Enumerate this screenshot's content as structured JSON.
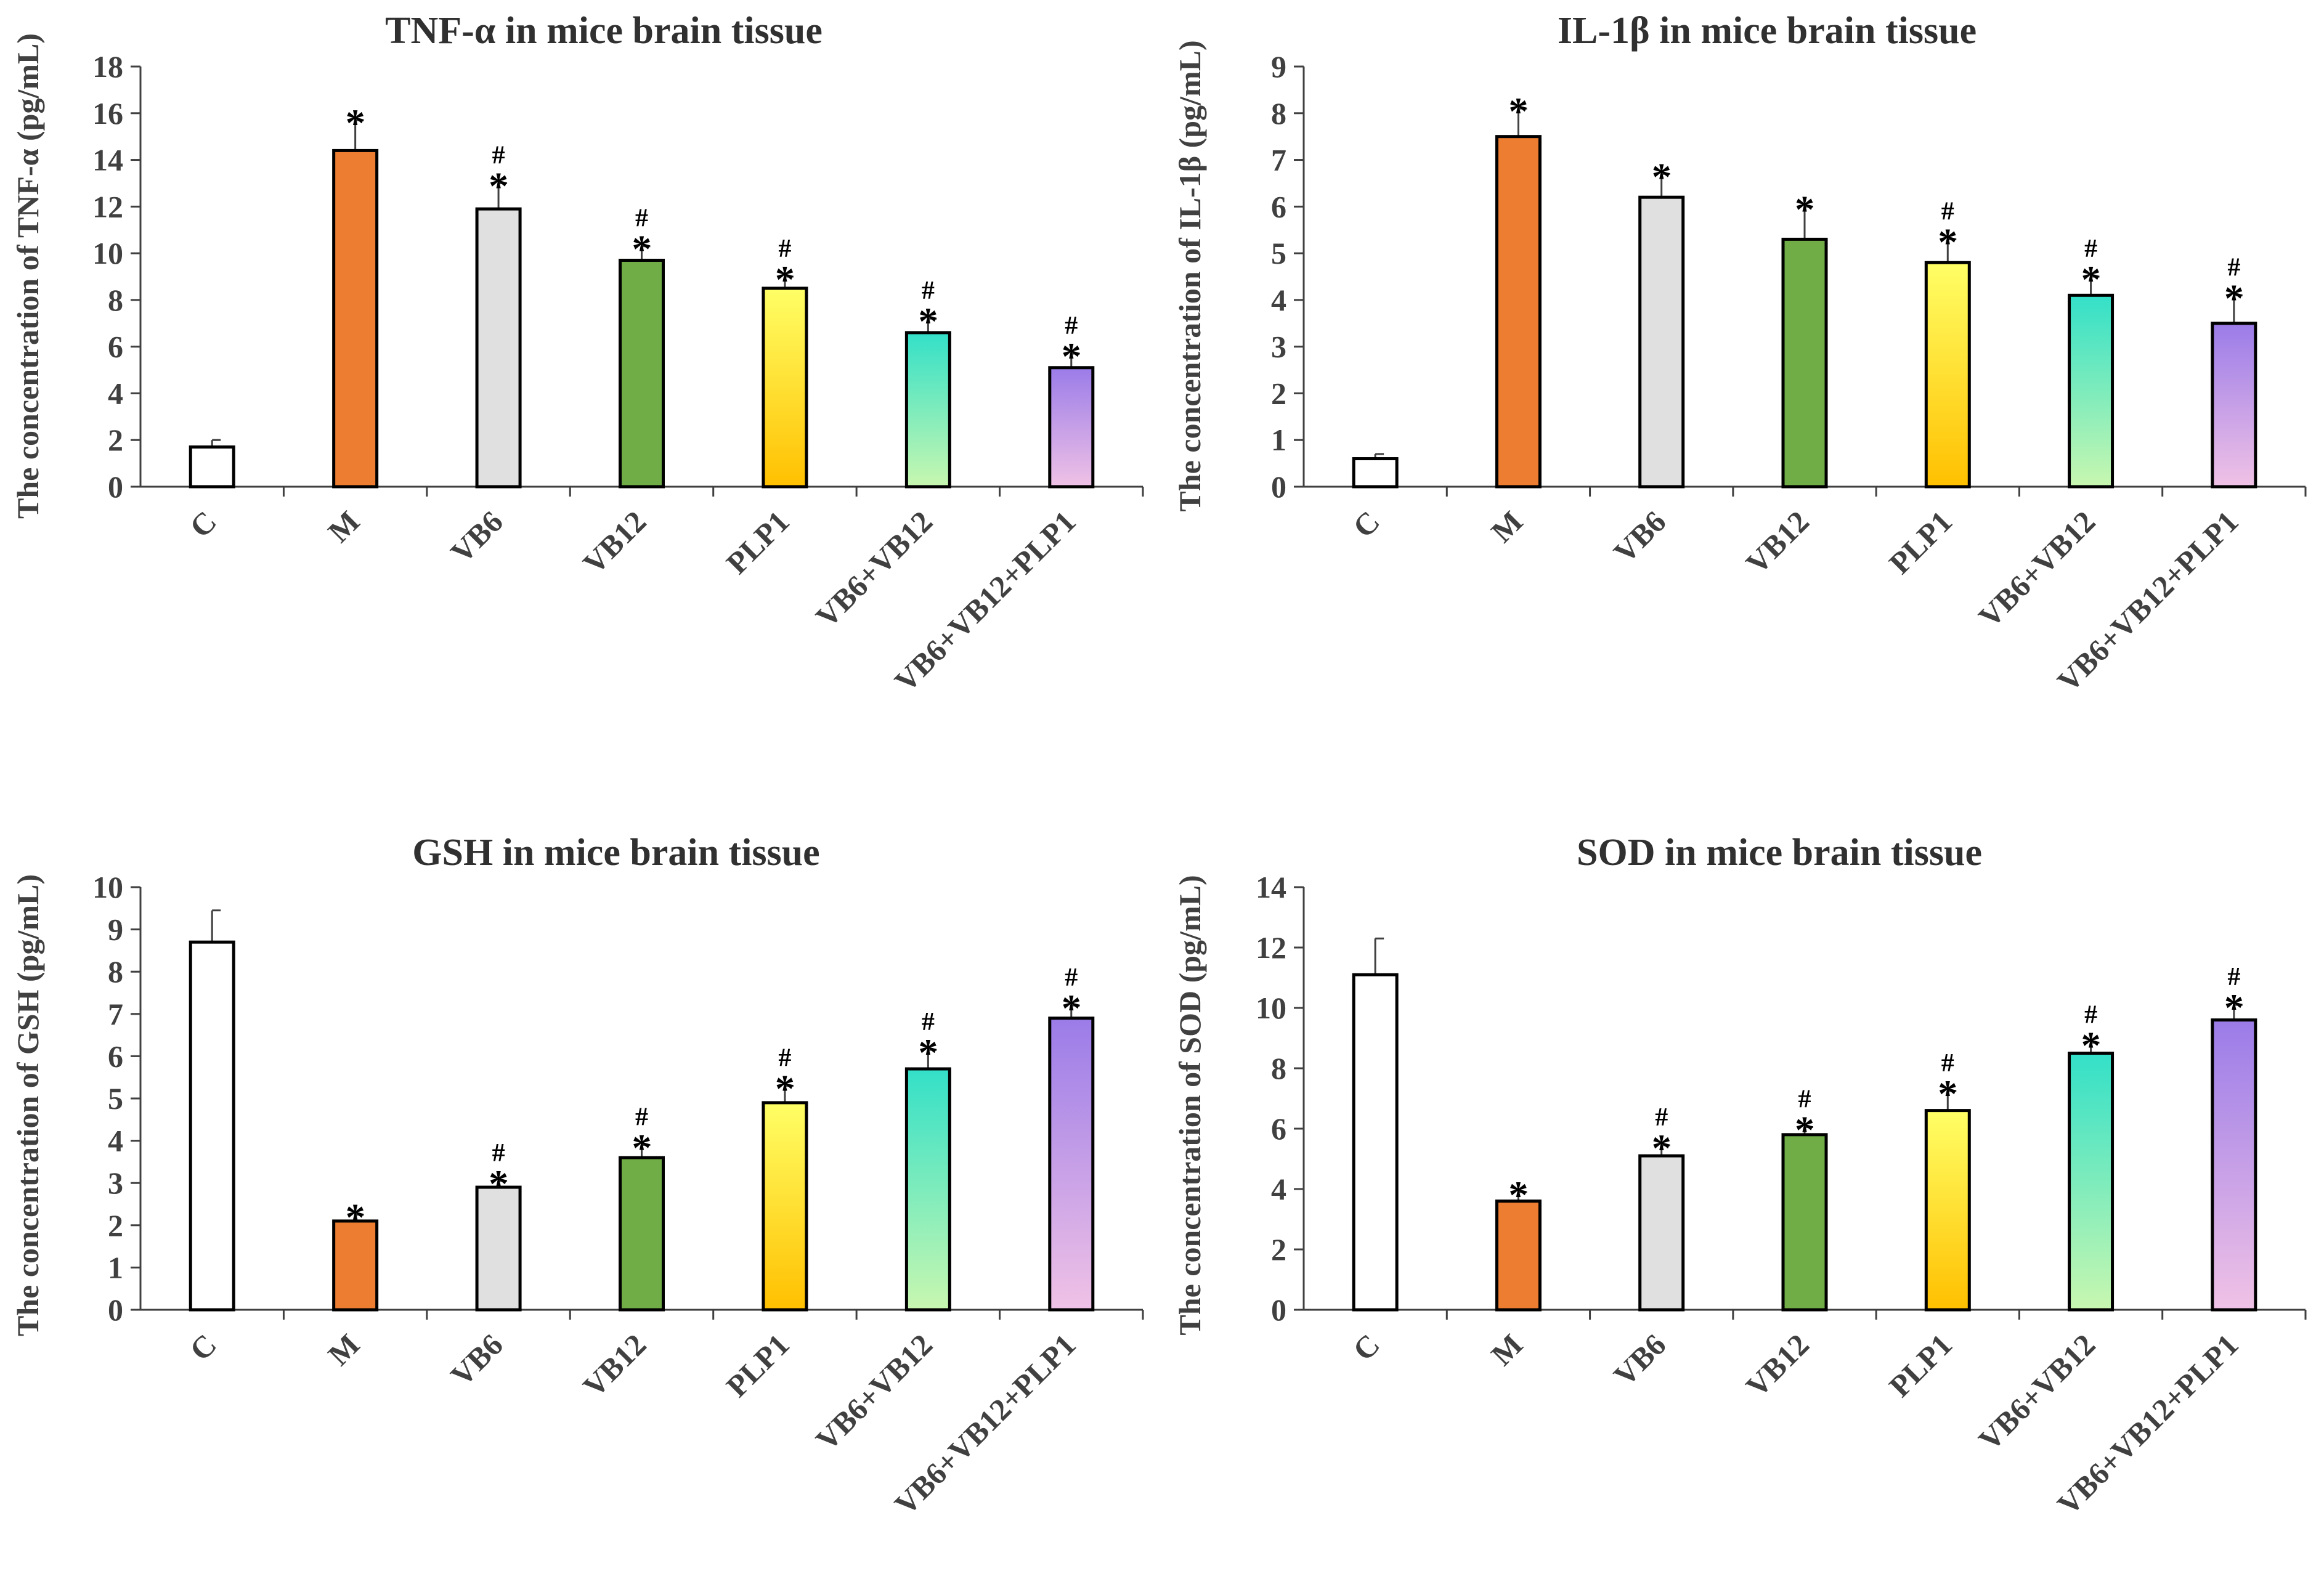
{
  "chart_data": [
    {
      "type": "bar",
      "title": "TNF-α in mice brain tissue",
      "ylabel": "The concentration of TNF-α (pg/mL)",
      "xlabel": "",
      "ylim": [
        0,
        18
      ],
      "ytick_step": 2,
      "yticks": [
        "0",
        "2",
        "4",
        "6",
        "8",
        "10",
        "12",
        "14",
        "16",
        "18"
      ],
      "categories": [
        "C",
        "M",
        "VB6",
        "VB12",
        "PLP1",
        "VB6+VB12",
        "VB6+VB12+PLP1"
      ],
      "values": [
        1.7,
        14.4,
        11.9,
        9.7,
        8.5,
        6.6,
        5.1
      ],
      "errors": [
        0.3,
        1.3,
        1.1,
        0.6,
        0.5,
        0.6,
        0.6
      ],
      "star_label": "*",
      "hash_label": "#",
      "stars": [
        false,
        true,
        true,
        true,
        true,
        true,
        true
      ],
      "hashes": [
        false,
        false,
        true,
        true,
        true,
        true,
        true
      ]
    },
    {
      "type": "bar",
      "title": "IL-1β in mice brain tissue",
      "ylabel": "The concentration of IL-1β (pg/mL)",
      "xlabel": "",
      "ylim": [
        0,
        9
      ],
      "ytick_step": 1,
      "yticks": [
        "0",
        "1",
        "2",
        "3",
        "4",
        "5",
        "6",
        "7",
        "8",
        "9"
      ],
      "categories": [
        "C",
        "M",
        "VB6",
        "VB12",
        "PLP1",
        "VB6+VB12",
        "VB6+VB12+PLP1"
      ],
      "values": [
        0.6,
        7.5,
        6.2,
        5.3,
        4.8,
        4.1,
        3.5
      ],
      "errors": [
        0.1,
        0.6,
        0.5,
        0.7,
        0.5,
        0.4,
        0.6
      ],
      "star_label": "*",
      "hash_label": "#",
      "stars": [
        false,
        true,
        true,
        true,
        true,
        true,
        true
      ],
      "hashes": [
        false,
        false,
        false,
        false,
        true,
        true,
        true
      ]
    },
    {
      "type": "bar",
      "title": "GSH in mice brain tissue",
      "ylabel": "The concentration of GSH (pg/mL)",
      "xlabel": "",
      "ylim": [
        0,
        10
      ],
      "ytick_step": 1,
      "yticks": [
        "0",
        "1",
        "2",
        "3",
        "4",
        "5",
        "6",
        "7",
        "8",
        "9",
        "10"
      ],
      "categories": [
        "C",
        "M",
        "VB6",
        "VB12",
        "PLP1",
        "VB6+VB12",
        "VB6+VB12+PLP1"
      ],
      "values": [
        8.7,
        2.1,
        2.9,
        3.6,
        4.9,
        5.7,
        6.9
      ],
      "errors": [
        0.75,
        0.15,
        0.15,
        0.3,
        0.4,
        0.45,
        0.3
      ],
      "star_label": "*",
      "hash_label": "#",
      "stars": [
        false,
        true,
        true,
        true,
        true,
        true,
        true
      ],
      "hashes": [
        false,
        false,
        true,
        true,
        true,
        true,
        true
      ]
    },
    {
      "type": "bar",
      "title": "SOD in mice brain tissue",
      "ylabel": "The concentration of SOD (pg/mL)",
      "xlabel": "",
      "ylim": [
        0,
        14
      ],
      "ytick_step": 2,
      "yticks": [
        "0",
        "2",
        "4",
        "6",
        "8",
        "10",
        "12",
        "14"
      ],
      "categories": [
        "C",
        "M",
        "VB6",
        "VB12",
        "PLP1",
        "VB6+VB12",
        "VB6+VB12+PLP1"
      ],
      "values": [
        11.1,
        3.6,
        5.1,
        5.8,
        6.6,
        8.5,
        9.6
      ],
      "errors": [
        1.2,
        0.3,
        0.35,
        0.25,
        0.65,
        0.35,
        0.5
      ],
      "star_label": "*",
      "hash_label": "#",
      "stars": [
        false,
        true,
        true,
        true,
        true,
        true,
        true
      ],
      "hashes": [
        false,
        false,
        true,
        true,
        true,
        true,
        true
      ]
    }
  ],
  "colors": {
    "axis": "#404040",
    "bar_outline": "#000000",
    "C": "#ffffff",
    "M": "#ED7D31",
    "VB6": "#E0E0E0",
    "VB12": "#70AD47",
    "PLP1_top": "#FFFF66",
    "PLP1_bottom": "#FFC000",
    "VB6VB12_top": "#33E0C8",
    "VB6VB12_bottom": "#C8F7B0",
    "Triple_top": "#9B7CE8",
    "Triple_bottom": "#F0C2E6"
  }
}
